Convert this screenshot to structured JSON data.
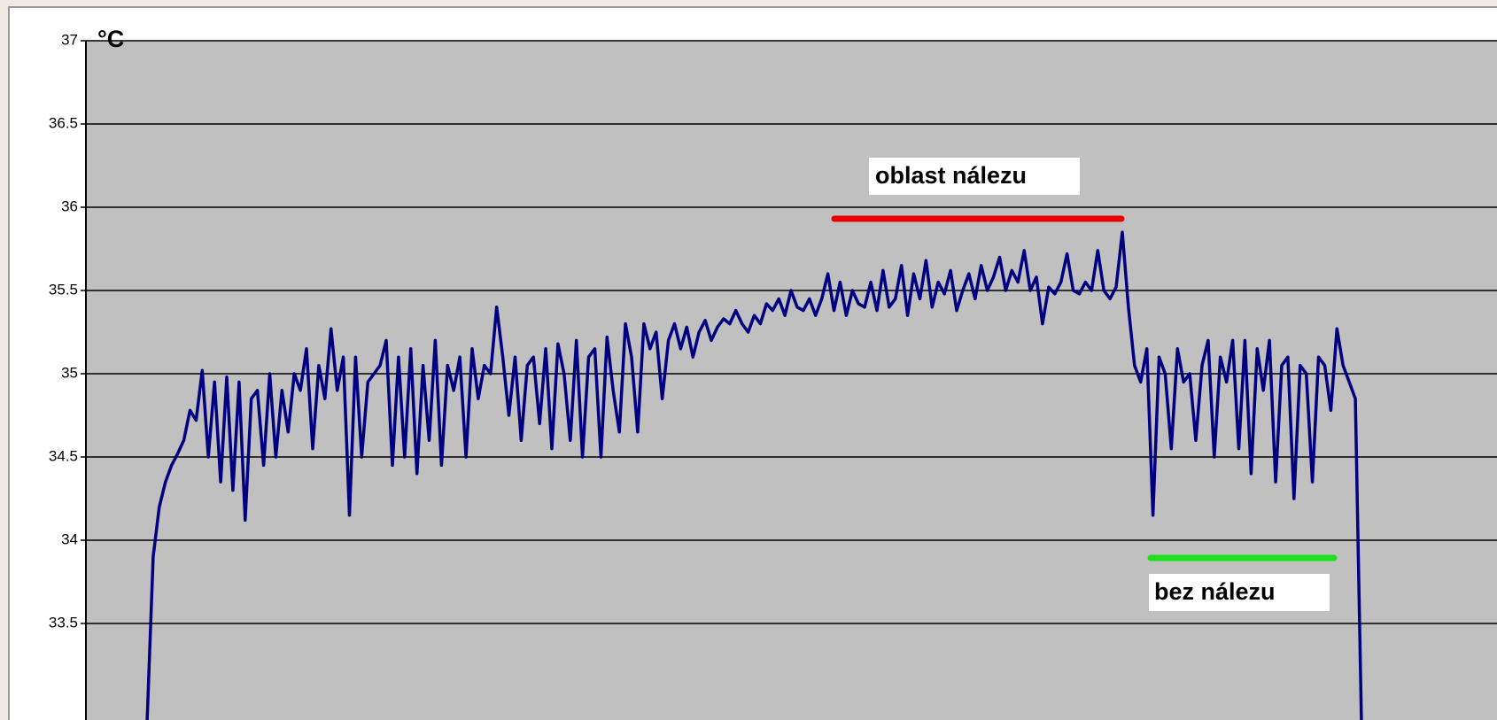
{
  "chart_data": {
    "type": "line",
    "y_label": "°C",
    "annotations": [
      "oblast nálezu",
      "bez nálezu"
    ],
    "series": [
      {
        "color": "#000080",
        "values": [
          32.9,
          33.9,
          34.2,
          34.35,
          34.45,
          34.52,
          34.6,
          34.78,
          34.72,
          35.02,
          34.5,
          34.95,
          34.35,
          34.98,
          34.3,
          34.95,
          34.12,
          34.85,
          34.9,
          34.45,
          35.0,
          34.5,
          34.9,
          34.65,
          35.0,
          34.9,
          35.15,
          34.55,
          35.05,
          34.85,
          35.27,
          34.9,
          35.1,
          34.15,
          35.1,
          34.5,
          34.95,
          35.0,
          35.05,
          35.2,
          34.45,
          35.1,
          34.5,
          35.15,
          34.4,
          35.05,
          34.6,
          35.2,
          34.45,
          35.05,
          34.9,
          35.1,
          34.5,
          35.15,
          34.85,
          35.05,
          35.0,
          35.4,
          35.1,
          34.75,
          35.1,
          34.6,
          35.05,
          35.1,
          34.7,
          35.15,
          34.55,
          35.18,
          35.0,
          34.6,
          35.2,
          34.5,
          35.1,
          35.15,
          34.5,
          35.22,
          34.9,
          34.65,
          35.3,
          35.1,
          34.65,
          35.3,
          35.15,
          35.25,
          34.85,
          35.2,
          35.3,
          35.15,
          35.28,
          35.1,
          35.25,
          35.32,
          35.2,
          35.28,
          35.33,
          35.3,
          35.38,
          35.3,
          35.25,
          35.35,
          35.3,
          35.42,
          35.38,
          35.45,
          35.35,
          35.5,
          35.4,
          35.38,
          35.45,
          35.35,
          35.45,
          35.6,
          35.38,
          35.55,
          35.35,
          35.5,
          35.42,
          35.4,
          35.55,
          35.38,
          35.62,
          35.4,
          35.45,
          35.65,
          35.35,
          35.6,
          35.45,
          35.68,
          35.4,
          35.55,
          35.48,
          35.62,
          35.38,
          35.5,
          35.6,
          35.45,
          35.65,
          35.5,
          35.58,
          35.7,
          35.5,
          35.62,
          35.55,
          35.74,
          35.5,
          35.58,
          35.3,
          35.52,
          35.48,
          35.55,
          35.72,
          35.5,
          35.48,
          35.55,
          35.5,
          35.74,
          35.5,
          35.45,
          35.52,
          35.85,
          35.4,
          35.05,
          34.95,
          35.15,
          34.15,
          35.1,
          35.0,
          34.55,
          35.15,
          34.95,
          35.0,
          34.6,
          35.05,
          35.2,
          34.5,
          35.1,
          34.95,
          35.2,
          34.55,
          35.2,
          34.4,
          35.15,
          34.9,
          35.2,
          34.35,
          35.05,
          35.1,
          34.25,
          35.05,
          35.0,
          34.35,
          35.1,
          35.05,
          34.78,
          35.27,
          35.05,
          34.95,
          34.85,
          32.9
        ]
      }
    ],
    "ylim": [
      32.9,
      37
    ],
    "yticks": [
      33.5,
      34,
      34.5,
      35,
      35.5,
      36,
      36.5,
      37
    ],
    "grid": true
  }
}
